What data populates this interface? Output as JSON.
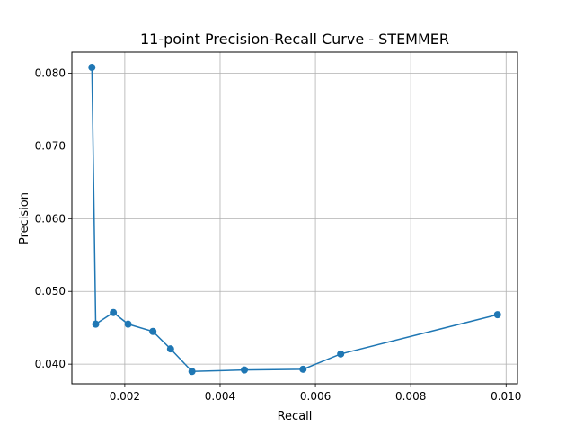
{
  "chart_data": {
    "type": "line",
    "title": "11-point Precision-Recall Curve - STEMMER",
    "xlabel": "Recall",
    "ylabel": "Precision",
    "xlim": [
      0.00089,
      0.01024
    ],
    "ylim": [
      0.0373,
      0.0829
    ],
    "xticks": [
      0.002,
      0.004,
      0.006,
      0.008,
      0.01
    ],
    "xtick_labels": [
      "0.002",
      "0.004",
      "0.006",
      "0.008",
      "0.010"
    ],
    "yticks": [
      0.04,
      0.05,
      0.06,
      0.07,
      0.08
    ],
    "ytick_labels": [
      "0.040",
      "0.050",
      "0.060",
      "0.070",
      "0.080"
    ],
    "grid": true,
    "series_color": "#1f77b4",
    "series": [
      {
        "x": [
          0.00131,
          0.00139,
          0.00176,
          0.00207,
          0.00259,
          0.00296,
          0.00341,
          0.00451,
          0.00574,
          0.00653,
          0.00982
        ],
        "y": [
          0.0808,
          0.0455,
          0.0471,
          0.0455,
          0.0445,
          0.0421,
          0.039,
          0.0392,
          0.0393,
          0.0414,
          0.0468
        ]
      }
    ]
  }
}
